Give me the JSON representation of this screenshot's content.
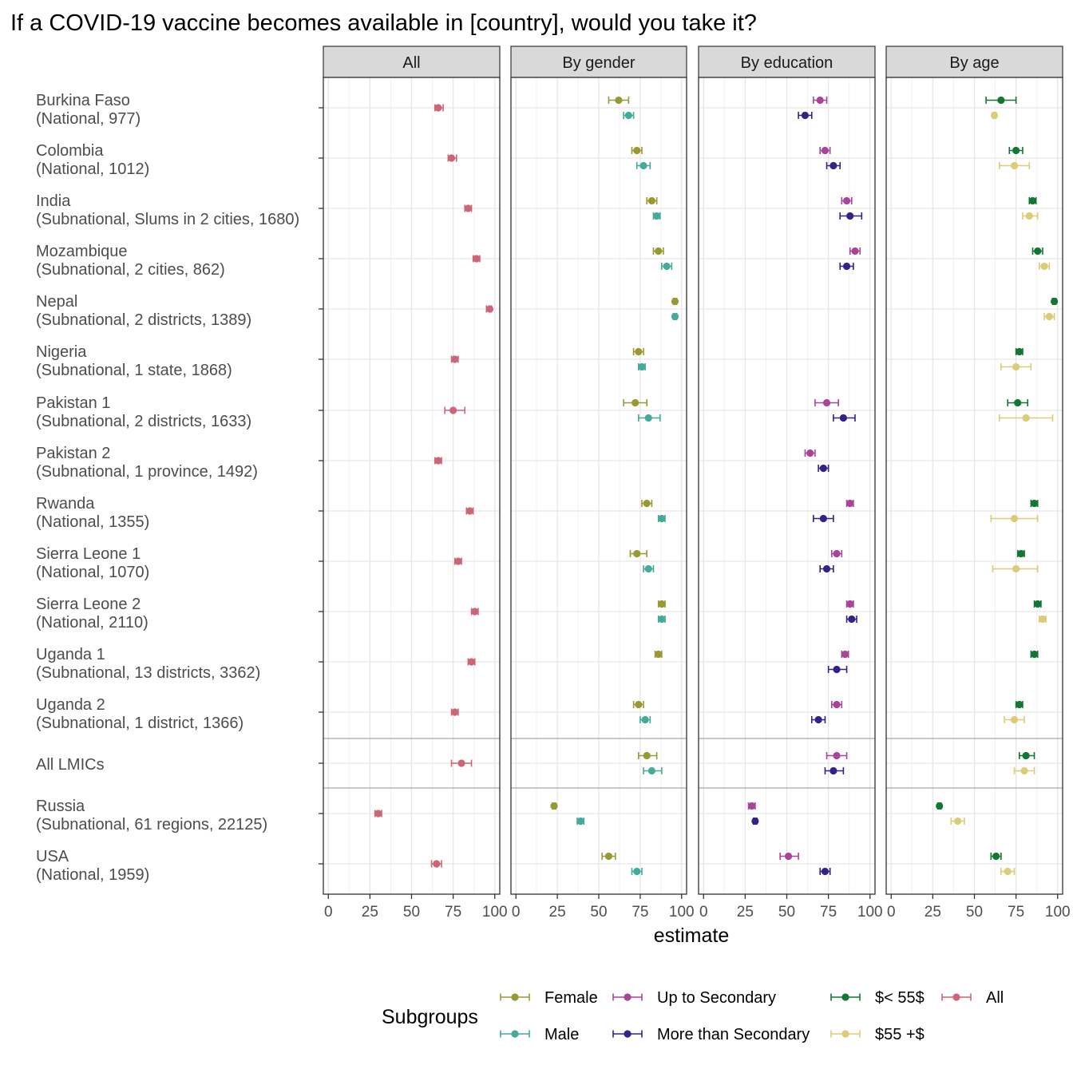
{
  "chart_data": {
    "type": "dot-errorbar",
    "title": "If a COVID-19 vaccine becomes available in [country], would you take it?",
    "xlabel": "estimate",
    "xlim": [
      -3,
      103
    ],
    "xticks": [
      0,
      25,
      50,
      75,
      100
    ],
    "grid": true,
    "panels": [
      "All",
      "By gender",
      "By education",
      "By age"
    ],
    "countries": [
      {
        "name": "Burkina Faso",
        "sub": "(National, 977)",
        "group": 0
      },
      {
        "name": "Colombia",
        "sub": "(National, 1012)",
        "group": 0
      },
      {
        "name": "India",
        "sub": "(Subnational, Slums in 2 cities, 1680)",
        "group": 0
      },
      {
        "name": "Mozambique",
        "sub": "(Subnational, 2 cities, 862)",
        "group": 0
      },
      {
        "name": "Nepal",
        "sub": "(Subnational, 2 districts, 1389)",
        "group": 0
      },
      {
        "name": "Nigeria",
        "sub": "(Subnational, 1 state, 1868)",
        "group": 0
      },
      {
        "name": "Pakistan 1",
        "sub": "(Subnational, 2 districts, 1633)",
        "group": 0
      },
      {
        "name": "Pakistan 2",
        "sub": "(Subnational, 1 province, 1492)",
        "group": 0
      },
      {
        "name": "Rwanda",
        "sub": "(National, 1355)",
        "group": 0
      },
      {
        "name": "Sierra Leone 1",
        "sub": "(National, 1070)",
        "group": 0
      },
      {
        "name": "Sierra Leone 2",
        "sub": "(National, 2110)",
        "group": 0
      },
      {
        "name": "Uganda 1",
        "sub": "(Subnational, 13 districts, 3362)",
        "group": 0
      },
      {
        "name": "Uganda 2",
        "sub": "(Subnational, 1 district, 1366)",
        "group": 0
      },
      {
        "name": "All LMICs",
        "sub": "",
        "group": 1
      },
      {
        "name": "Russia",
        "sub": "(Subnational, 61 regions, 22125)",
        "group": 2
      },
      {
        "name": "USA",
        "sub": "(National, 1959)",
        "group": 2
      }
    ],
    "series_colors": {
      "All": "#CC6677",
      "Female": "#999933",
      "Male": "#44AA99",
      "Up to Secondary": "#AA4499",
      "More than Secondary": "#332288",
      "$< 55$": "#117733",
      "$55 +$": "#DDCC77"
    },
    "panel_series": [
      [
        "All"
      ],
      [
        "Female",
        "Male"
      ],
      [
        "Up to Secondary",
        "More than Secondary"
      ],
      [
        "$< 55$",
        "$55 +$"
      ]
    ],
    "estimates": {
      "All": [
        [
          66,
          64,
          69
        ],
        [
          74,
          72,
          77
        ],
        [
          84,
          82,
          86
        ],
        [
          89,
          87,
          91
        ],
        [
          97,
          95,
          98
        ],
        [
          76,
          74,
          78
        ],
        [
          75,
          70,
          82
        ],
        [
          66,
          64,
          68
        ],
        [
          85,
          83,
          87
        ],
        [
          78,
          76,
          80
        ],
        [
          88,
          86,
          90
        ],
        [
          86,
          84,
          88
        ],
        [
          76,
          74,
          78
        ],
        [
          80,
          74,
          86
        ],
        [
          30,
          28,
          32
        ],
        [
          65,
          62,
          68
        ]
      ],
      "Female": [
        [
          62,
          56,
          68
        ],
        [
          73,
          70,
          76
        ],
        [
          82,
          79,
          85
        ],
        [
          86,
          83,
          89
        ],
        [
          96,
          95,
          97
        ],
        [
          74,
          71,
          77
        ],
        [
          72,
          65,
          79
        ],
        null,
        [
          79,
          76,
          82
        ],
        [
          73,
          69,
          79
        ],
        [
          88,
          86,
          90
        ],
        [
          86,
          84,
          88
        ],
        [
          74,
          71,
          77
        ],
        [
          79,
          74,
          85
        ],
        [
          23,
          22,
          24
        ],
        [
          56,
          52,
          60
        ]
      ],
      "Male": [
        [
          68,
          65,
          71
        ],
        [
          77,
          73,
          81
        ],
        [
          85,
          83,
          87
        ],
        [
          91,
          88,
          94
        ],
        [
          96,
          95,
          97
        ],
        [
          76,
          74,
          78
        ],
        [
          80,
          74,
          87
        ],
        null,
        [
          88,
          86,
          90
        ],
        [
          80,
          77,
          83
        ],
        [
          88,
          86,
          90
        ],
        null,
        [
          78,
          75,
          81
        ],
        [
          82,
          77,
          88
        ],
        [
          39,
          37,
          41
        ],
        [
          73,
          70,
          76
        ]
      ],
      "Up to Secondary": [
        [
          70,
          66,
          74
        ],
        [
          73,
          70,
          76
        ],
        [
          86,
          83,
          89
        ],
        [
          91,
          88,
          94
        ],
        null,
        null,
        [
          74,
          67,
          81
        ],
        [
          64,
          61,
          67
        ],
        [
          88,
          86,
          90
        ],
        [
          80,
          77,
          83
        ],
        [
          88,
          86,
          90
        ],
        [
          85,
          83,
          87
        ],
        [
          80,
          77,
          83
        ],
        [
          80,
          74,
          86
        ],
        [
          29,
          27,
          31
        ],
        [
          51,
          46,
          57
        ]
      ],
      "More than Secondary": [
        [
          61,
          57,
          65
        ],
        [
          78,
          74,
          82
        ],
        [
          88,
          82,
          95
        ],
        [
          86,
          82,
          90
        ],
        null,
        null,
        [
          84,
          78,
          91
        ],
        [
          72,
          69,
          75
        ],
        [
          72,
          66,
          78
        ],
        [
          74,
          70,
          78
        ],
        [
          89,
          86,
          92
        ],
        [
          80,
          75,
          86
        ],
        [
          69,
          65,
          73
        ],
        [
          78,
          73,
          84
        ],
        [
          31,
          30,
          32
        ],
        [
          73,
          70,
          76
        ]
      ],
      "$< 55$": [
        [
          66,
          57,
          75
        ],
        [
          75,
          71,
          79
        ],
        [
          85,
          83,
          87
        ],
        [
          88,
          85,
          91
        ],
        [
          98,
          97,
          99
        ],
        [
          77,
          75,
          79
        ],
        [
          76,
          70,
          82
        ],
        null,
        [
          86,
          84,
          88
        ],
        [
          78,
          76,
          80
        ],
        [
          88,
          86,
          90
        ],
        [
          86,
          84,
          88
        ],
        [
          77,
          75,
          79
        ],
        [
          81,
          77,
          86
        ],
        [
          29,
          28,
          30
        ],
        [
          63,
          60,
          66
        ]
      ],
      "$55 +$": [
        [
          62,
          61,
          63
        ],
        [
          74,
          65,
          83
        ],
        [
          83,
          79,
          88
        ],
        [
          92,
          89,
          95
        ],
        [
          95,
          92,
          98
        ],
        [
          75,
          66,
          84
        ],
        [
          81,
          65,
          97
        ],
        null,
        [
          74,
          60,
          88
        ],
        [
          75,
          61,
          88
        ],
        [
          91,
          89,
          93
        ],
        null,
        [
          74,
          68,
          80
        ],
        [
          80,
          74,
          86
        ],
        [
          40,
          36,
          44
        ],
        [
          70,
          66,
          74
        ]
      ]
    },
    "legend_title": "Subgroups",
    "legend": [
      "Female",
      "Male",
      "Up to Secondary",
      "More than Secondary",
      "$< 55$",
      "$55 +$",
      "All"
    ]
  }
}
